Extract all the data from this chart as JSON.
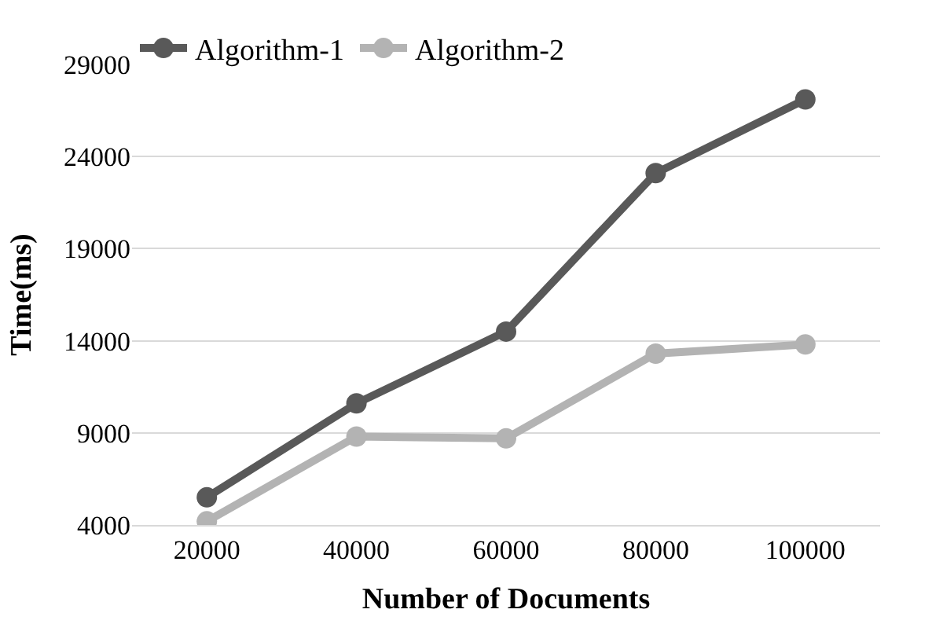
{
  "chart_data": {
    "type": "line",
    "xlabel": "Number of Documents",
    "ylabel": "Time(ms)",
    "categories": [
      "20000",
      "40000",
      "60000",
      "80000",
      "100000"
    ],
    "series": [
      {
        "name": "Algorithm-1",
        "color": "#595959",
        "values": [
          5500,
          10600,
          14500,
          23100,
          27100
        ]
      },
      {
        "name": "Algorithm-2",
        "color": "#b3b3b3",
        "values": [
          4200,
          8800,
          8700,
          13300,
          13800
        ]
      }
    ],
    "ylim": [
      4000,
      29000
    ],
    "yticks": [
      4000,
      9000,
      14000,
      19000,
      24000,
      29000
    ],
    "grid": "y",
    "legend": "top left",
    "marker": "circle",
    "line_style": "solid"
  }
}
